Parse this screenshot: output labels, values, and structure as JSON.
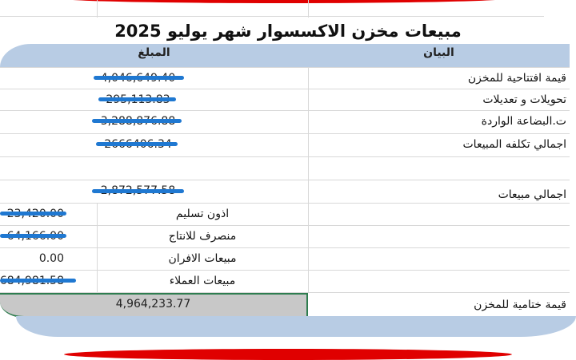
{
  "title": "مبيعات مخزن الاكسسوار شهر يوليو 2025",
  "headers": {
    "description": "البيان",
    "amount": "المبلغ"
  },
  "rows": [
    {
      "label": "قيمة افتتاحية للمخزن",
      "value": "4,046,649.40",
      "redacted": true
    },
    {
      "label": "تحويلات و تعديلات",
      "value": "295,113.83",
      "redacted": true
    },
    {
      "label": "ت.البضاعة الواردة",
      "value": "3,288,876.88",
      "redacted": true
    },
    {
      "label": "اجمالي تكلفه المبيعات",
      "value": "2666406.34",
      "redacted": true
    },
    {
      "label": "اجمالي مبيعات",
      "value": "2,872,577.58",
      "redacted": true
    }
  ],
  "sub_rows": [
    {
      "label": "اذون تسليم",
      "value": "23,420.00",
      "redacted": true
    },
    {
      "label": "منصرف للانتاج",
      "value": "64,166.00",
      "redacted": true
    },
    {
      "label": "مبيعات الافران",
      "value": "0.00",
      "redacted": false
    },
    {
      "label": "مبيعات العملاء",
      "value": "684,981.58",
      "redacted": true
    }
  ],
  "final": {
    "label": "قيمة ختامية للمخزن",
    "value": "4,964,233.77"
  },
  "colors": {
    "header_bg": "#b8cce4",
    "selected_border": "#2e7d4f",
    "scribble": "#1f78d1",
    "accent_red": "#e00000"
  }
}
